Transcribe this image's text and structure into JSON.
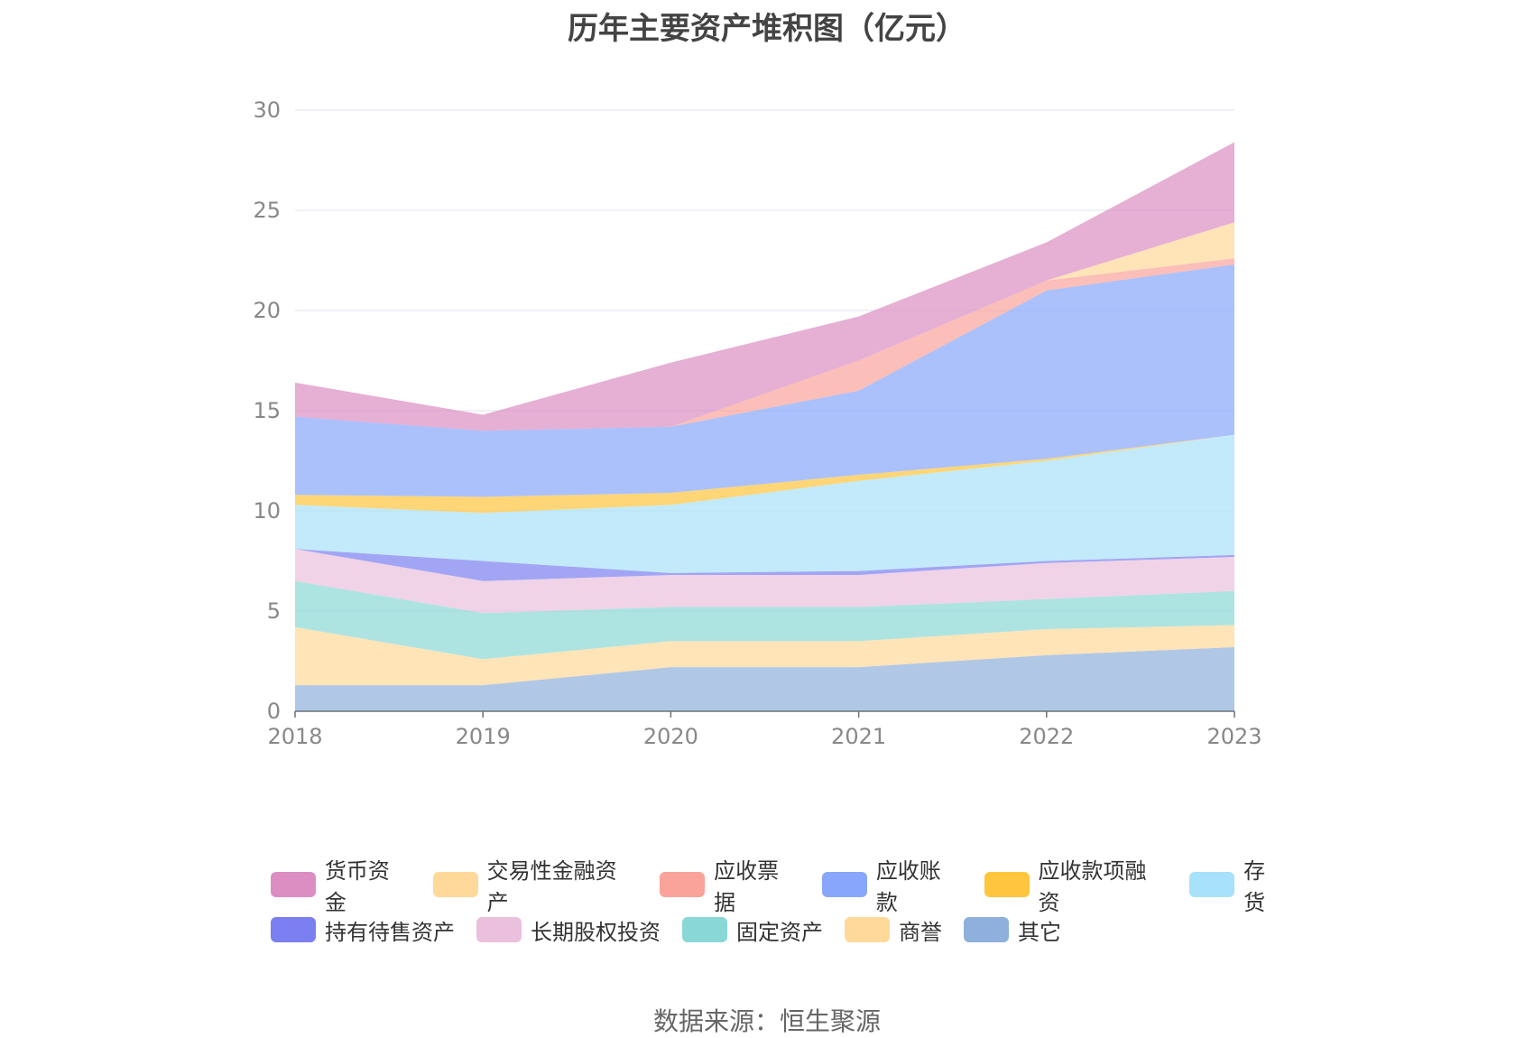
{
  "title": "历年主要资产堆积图（亿元）",
  "source": "数据来源：恒生聚源",
  "chart_data": {
    "type": "area",
    "stacked": true,
    "title": "历年主要资产堆积图（亿元）",
    "x": [
      "2018",
      "2019",
      "2020",
      "2021",
      "2022",
      "2023"
    ],
    "ylim": [
      0,
      30
    ],
    "yticks": [
      0,
      5,
      10,
      15,
      20,
      25,
      30
    ],
    "grid": true,
    "legend_position": "bottom",
    "series": [
      {
        "name": "其它",
        "color": "#8fb0dc",
        "values": [
          1.3,
          1.3,
          2.2,
          2.2,
          2.8,
          3.2
        ]
      },
      {
        "name": "商誉",
        "color": "#ffd99a",
        "values": [
          2.9,
          1.3,
          1.3,
          1.3,
          1.3,
          1.1
        ]
      },
      {
        "name": "固定资产",
        "color": "#8ad8d6",
        "values": [
          2.3,
          2.3,
          1.7,
          1.7,
          1.5,
          1.7
        ]
      },
      {
        "name": "长期股权投资",
        "color": "#eac0dd",
        "values": [
          1.6,
          1.6,
          1.6,
          1.6,
          1.8,
          1.7
        ]
      },
      {
        "name": "持有待售资产",
        "color": "#7b7ff0",
        "values": [
          0.0,
          1.0,
          0.1,
          0.2,
          0.1,
          0.1
        ]
      },
      {
        "name": "存货",
        "color": "#a8e1fa",
        "values": [
          2.2,
          2.4,
          3.4,
          4.5,
          5.0,
          6.0
        ]
      },
      {
        "name": "应收款项融资",
        "color": "#ffc53d",
        "values": [
          0.5,
          0.8,
          0.6,
          0.3,
          0.1,
          0.0
        ]
      },
      {
        "name": "应收账款",
        "color": "#88a7fa",
        "values": [
          3.9,
          3.3,
          3.3,
          4.2,
          8.4,
          8.5
        ]
      },
      {
        "name": "应收票据",
        "color": "#f9a39a",
        "values": [
          0.0,
          0.0,
          0.0,
          1.5,
          0.5,
          0.3
        ]
      },
      {
        "name": "交易性金融资产",
        "color": "#ffd99a",
        "values": [
          0.0,
          0.0,
          0.0,
          0.0,
          0.0,
          1.8
        ]
      },
      {
        "name": "货币资金",
        "color": "#dc8dc2",
        "values": [
          1.7,
          0.8,
          3.2,
          2.2,
          1.9,
          4.0
        ]
      }
    ]
  },
  "legend": {
    "row1": [
      "货币资金",
      "交易性金融资产",
      "应收票据",
      "应收账款",
      "应收款项融资",
      "存货"
    ],
    "row2": [
      "持有待售资产",
      "长期股权投资",
      "固定资产",
      "商誉",
      "其它"
    ]
  }
}
